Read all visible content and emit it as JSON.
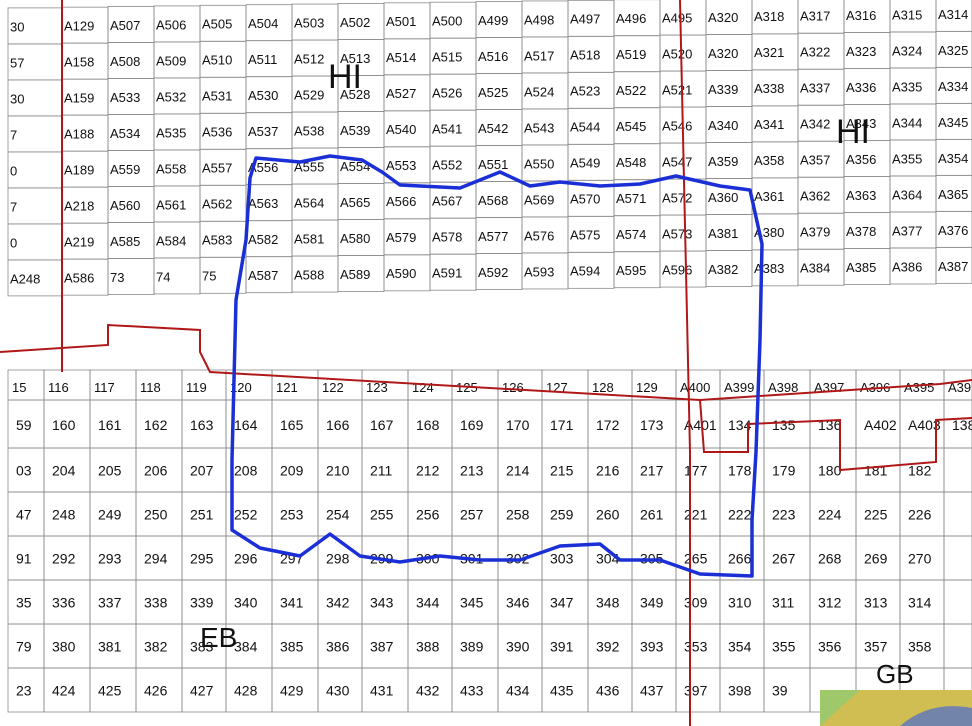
{
  "map": {
    "area_labels": {
      "hi_left": "HI",
      "hi_right": "HI",
      "eb": "EB",
      "gb": "GB"
    },
    "colors": {
      "grid": "#8a8a8a",
      "boundary": "#b01818",
      "outline": "#1b2fd6",
      "background": "#ffffff"
    },
    "upper_rows": [
      [
        "30",
        "A129",
        "A507",
        "A506",
        "A505",
        "A504",
        "A503",
        "A502",
        "A501",
        "A500",
        "A499",
        "A498",
        "A497",
        "A496",
        "A495",
        "A320",
        "A318",
        "A317",
        "A316",
        "A315",
        "A314",
        "A3"
      ],
      [
        "57",
        "A158",
        "A508",
        "A509",
        "A510",
        "A511",
        "A512",
        "A513",
        "A514",
        "A515",
        "A516",
        "A517",
        "A518",
        "A519",
        "A520",
        "A320",
        "A321",
        "A322",
        "A323",
        "A324",
        "A325",
        "A3"
      ],
      [
        "30",
        "A159",
        "A533",
        "A532",
        "A531",
        "A530",
        "A529",
        "A528",
        "A527",
        "A526",
        "A525",
        "A524",
        "A523",
        "A522",
        "A521",
        "A339",
        "A338",
        "A337",
        "A336",
        "A335",
        "A334",
        "A3"
      ],
      [
        "7",
        "A188",
        "A534",
        "A535",
        "A536",
        "A537",
        "A538",
        "A539",
        "A540",
        "A541",
        "A542",
        "A543",
        "A544",
        "A545",
        "A546",
        "A340",
        "A341",
        "A342",
        "A343",
        "A344",
        "A345",
        "A3"
      ],
      [
        "0",
        "A189",
        "A559",
        "A558",
        "A557",
        "A556",
        "A555",
        "A554",
        "A553",
        "A552",
        "A551",
        "A550",
        "A549",
        "A548",
        "A547",
        "A359",
        "A358",
        "A357",
        "A356",
        "A355",
        "A354",
        "A3"
      ],
      [
        "7",
        "A218",
        "A560",
        "A561",
        "A562",
        "A563",
        "A564",
        "A565",
        "A566",
        "A567",
        "A568",
        "A569",
        "A570",
        "A571",
        "A572",
        "A360",
        "A361",
        "A362",
        "A363",
        "A364",
        "A365",
        "A3"
      ],
      [
        "0",
        "A219",
        "A585",
        "A584",
        "A583",
        "A582",
        "A581",
        "A580",
        "A579",
        "A578",
        "A577",
        "A576",
        "A575",
        "A574",
        "A573",
        "A381",
        "A380",
        "A379",
        "A378",
        "A377",
        "A376",
        "A3"
      ],
      [
        "A248",
        "A586",
        "73",
        "74",
        "75",
        "A587",
        "A588",
        "A589",
        "A590",
        "A591",
        "A592",
        "A593",
        "A594",
        "A595",
        "A596",
        "A382",
        "A383",
        "A384",
        "A385",
        "A386",
        "A387",
        "A3"
      ]
    ],
    "transition_row": [
      "15",
      "116",
      "117",
      "118",
      "119",
      "120",
      "121",
      "122",
      "123",
      "124",
      "125",
      "126",
      "127",
      "128",
      "129",
      "A400",
      "A399",
      "A398",
      "A397",
      "A396",
      "A395",
      "A39"
    ],
    "lower_rows": [
      [
        "59",
        "160",
        "161",
        "162",
        "163",
        "164",
        "165",
        "166",
        "167",
        "168",
        "169",
        "170",
        "171",
        "172",
        "173",
        "A401",
        "134",
        "135",
        "136",
        "A402",
        "A403",
        "138"
      ],
      [
        "03",
        "204",
        "205",
        "206",
        "207",
        "208",
        "209",
        "210",
        "211",
        "212",
        "213",
        "214",
        "215",
        "216",
        "217",
        "177",
        "178",
        "179",
        "180",
        "181",
        "182",
        ""
      ],
      [
        "47",
        "248",
        "249",
        "250",
        "251",
        "252",
        "253",
        "254",
        "255",
        "256",
        "257",
        "258",
        "259",
        "260",
        "261",
        "221",
        "222",
        "223",
        "224",
        "225",
        "226",
        ""
      ],
      [
        "91",
        "292",
        "293",
        "294",
        "295",
        "296",
        "297",
        "298",
        "299",
        "300",
        "301",
        "302",
        "303",
        "304",
        "305",
        "265",
        "266",
        "267",
        "268",
        "269",
        "270",
        ""
      ],
      [
        "35",
        "336",
        "337",
        "338",
        "339",
        "340",
        "341",
        "342",
        "343",
        "344",
        "345",
        "346",
        "347",
        "348",
        "349",
        "309",
        "310",
        "311",
        "312",
        "313",
        "314",
        ""
      ],
      [
        "79",
        "380",
        "381",
        "382",
        "383",
        "384",
        "385",
        "386",
        "387",
        "388",
        "389",
        "390",
        "391",
        "392",
        "393",
        "353",
        "354",
        "355",
        "356",
        "357",
        "358",
        ""
      ],
      [
        "23",
        "424",
        "425",
        "426",
        "427",
        "428",
        "429",
        "430",
        "431",
        "432",
        "433",
        "434",
        "435",
        "436",
        "437",
        "397",
        "398",
        "39",
        "",
        "",
        "",
        ""
      ]
    ]
  }
}
